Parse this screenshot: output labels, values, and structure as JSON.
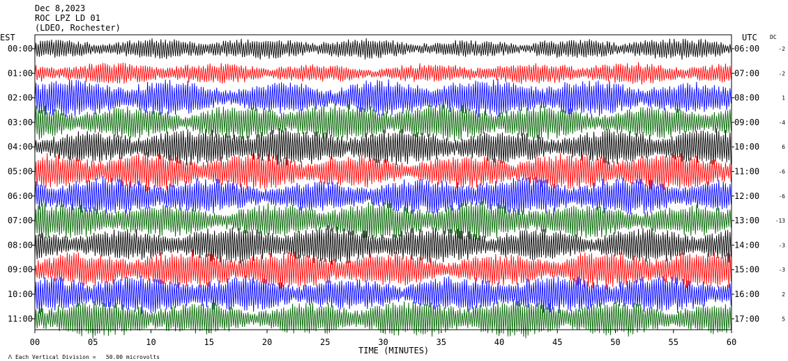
{
  "header": {
    "date": "Dec 8,2023",
    "station": "ROC LPZ LD 01",
    "network": "(LDEO, Rochester)"
  },
  "axis": {
    "left_title": "EST",
    "right_title": "UTC",
    "dc_title": "DC",
    "x_title": "TIME (MINUTES)"
  },
  "footer": {
    "note": "Each Vertical Division =   50.00 microvolts"
  },
  "colors": {
    "black": "#000000",
    "red": "#ff0000",
    "blue": "#0000ff",
    "green": "#006400"
  },
  "chart_data": {
    "type": "line",
    "x_ticks": [
      "00",
      "05",
      "10",
      "15",
      "20",
      "25",
      "30",
      "35",
      "40",
      "45",
      "50",
      "55",
      "60"
    ],
    "xlim": [
      0,
      60
    ],
    "grid": false,
    "trace_color_cycle": [
      "black",
      "red",
      "blue",
      "green"
    ],
    "rows": [
      {
        "local": "00:00",
        "utc": "06:00",
        "dc": "-2"
      },
      {
        "local": "01:00",
        "utc": "07:00",
        "dc": "-2"
      },
      {
        "local": "02:00",
        "utc": "08:00",
        "dc": "1"
      },
      {
        "local": "03:00",
        "utc": "09:00",
        "dc": "-4"
      },
      {
        "local": "04:00",
        "utc": "10:00",
        "dc": "6"
      },
      {
        "local": "05:00",
        "utc": "11:00",
        "dc": "-6"
      },
      {
        "local": "06:00",
        "utc": "12:00",
        "dc": "-6"
      },
      {
        "local": "07:00",
        "utc": "13:00",
        "dc": "-13"
      },
      {
        "local": "08:00",
        "utc": "14:00",
        "dc": "-3"
      },
      {
        "local": "09:00",
        "utc": "15:00",
        "dc": "-3"
      },
      {
        "local": "10:00",
        "utc": "16:00",
        "dc": "2"
      },
      {
        "local": "11:00",
        "utc": "17:00",
        "dc": "5"
      }
    ]
  }
}
